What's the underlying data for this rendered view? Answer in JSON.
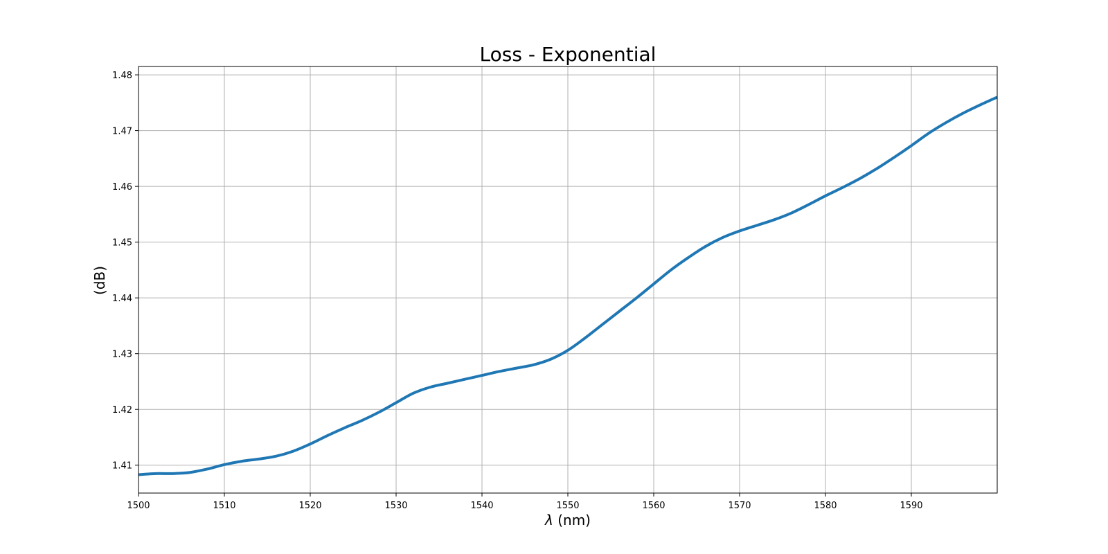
{
  "chart_data": {
    "type": "line",
    "title": "Loss - Exponential",
    "xlabel_symbol": "λ",
    "xlabel_rest": " (nm)",
    "ylabel": "(dB)",
    "xlim": [
      1500,
      1600
    ],
    "ylim": [
      1.405,
      1.4815
    ],
    "grid": true,
    "x_ticks": [
      1500,
      1510,
      1520,
      1530,
      1540,
      1550,
      1560,
      1570,
      1580,
      1590
    ],
    "x_tick_labels": [
      "1500",
      "1510",
      "1520",
      "1530",
      "1540",
      "1550",
      "1560",
      "1570",
      "1580",
      "1590"
    ],
    "y_ticks": [
      1.41,
      1.42,
      1.43,
      1.44,
      1.45,
      1.46,
      1.47,
      1.48
    ],
    "y_tick_labels": [
      "1.41",
      "1.42",
      "1.43",
      "1.44",
      "1.45",
      "1.46",
      "1.47",
      "1.48"
    ],
    "series": [
      {
        "color": "#1f77b4",
        "x": [
          1500,
          1502,
          1504,
          1506,
          1508,
          1510,
          1512,
          1514,
          1516,
          1518,
          1520,
          1522,
          1524,
          1526,
          1528,
          1530,
          1532,
          1534,
          1536,
          1538,
          1540,
          1542,
          1544,
          1546,
          1548,
          1550,
          1552,
          1554,
          1556,
          1558,
          1560,
          1562,
          1564,
          1566,
          1568,
          1570,
          1572,
          1574,
          1576,
          1578,
          1580,
          1582,
          1584,
          1586,
          1588,
          1590,
          1592,
          1594,
          1596,
          1598,
          1600
        ],
        "y": [
          1.4083,
          1.4085,
          1.4085,
          1.4087,
          1.4093,
          1.4101,
          1.4107,
          1.4111,
          1.4116,
          1.4125,
          1.4138,
          1.4153,
          1.4167,
          1.418,
          1.4195,
          1.4212,
          1.4229,
          1.424,
          1.4247,
          1.4254,
          1.4261,
          1.4268,
          1.4274,
          1.428,
          1.429,
          1.4306,
          1.4328,
          1.4352,
          1.4376,
          1.44,
          1.4425,
          1.445,
          1.4472,
          1.4492,
          1.4508,
          1.452,
          1.453,
          1.454,
          1.4552,
          1.4567,
          1.4583,
          1.4598,
          1.4614,
          1.4632,
          1.4652,
          1.4673,
          1.4695,
          1.4714,
          1.4731,
          1.4746,
          1.476
        ]
      }
    ]
  }
}
